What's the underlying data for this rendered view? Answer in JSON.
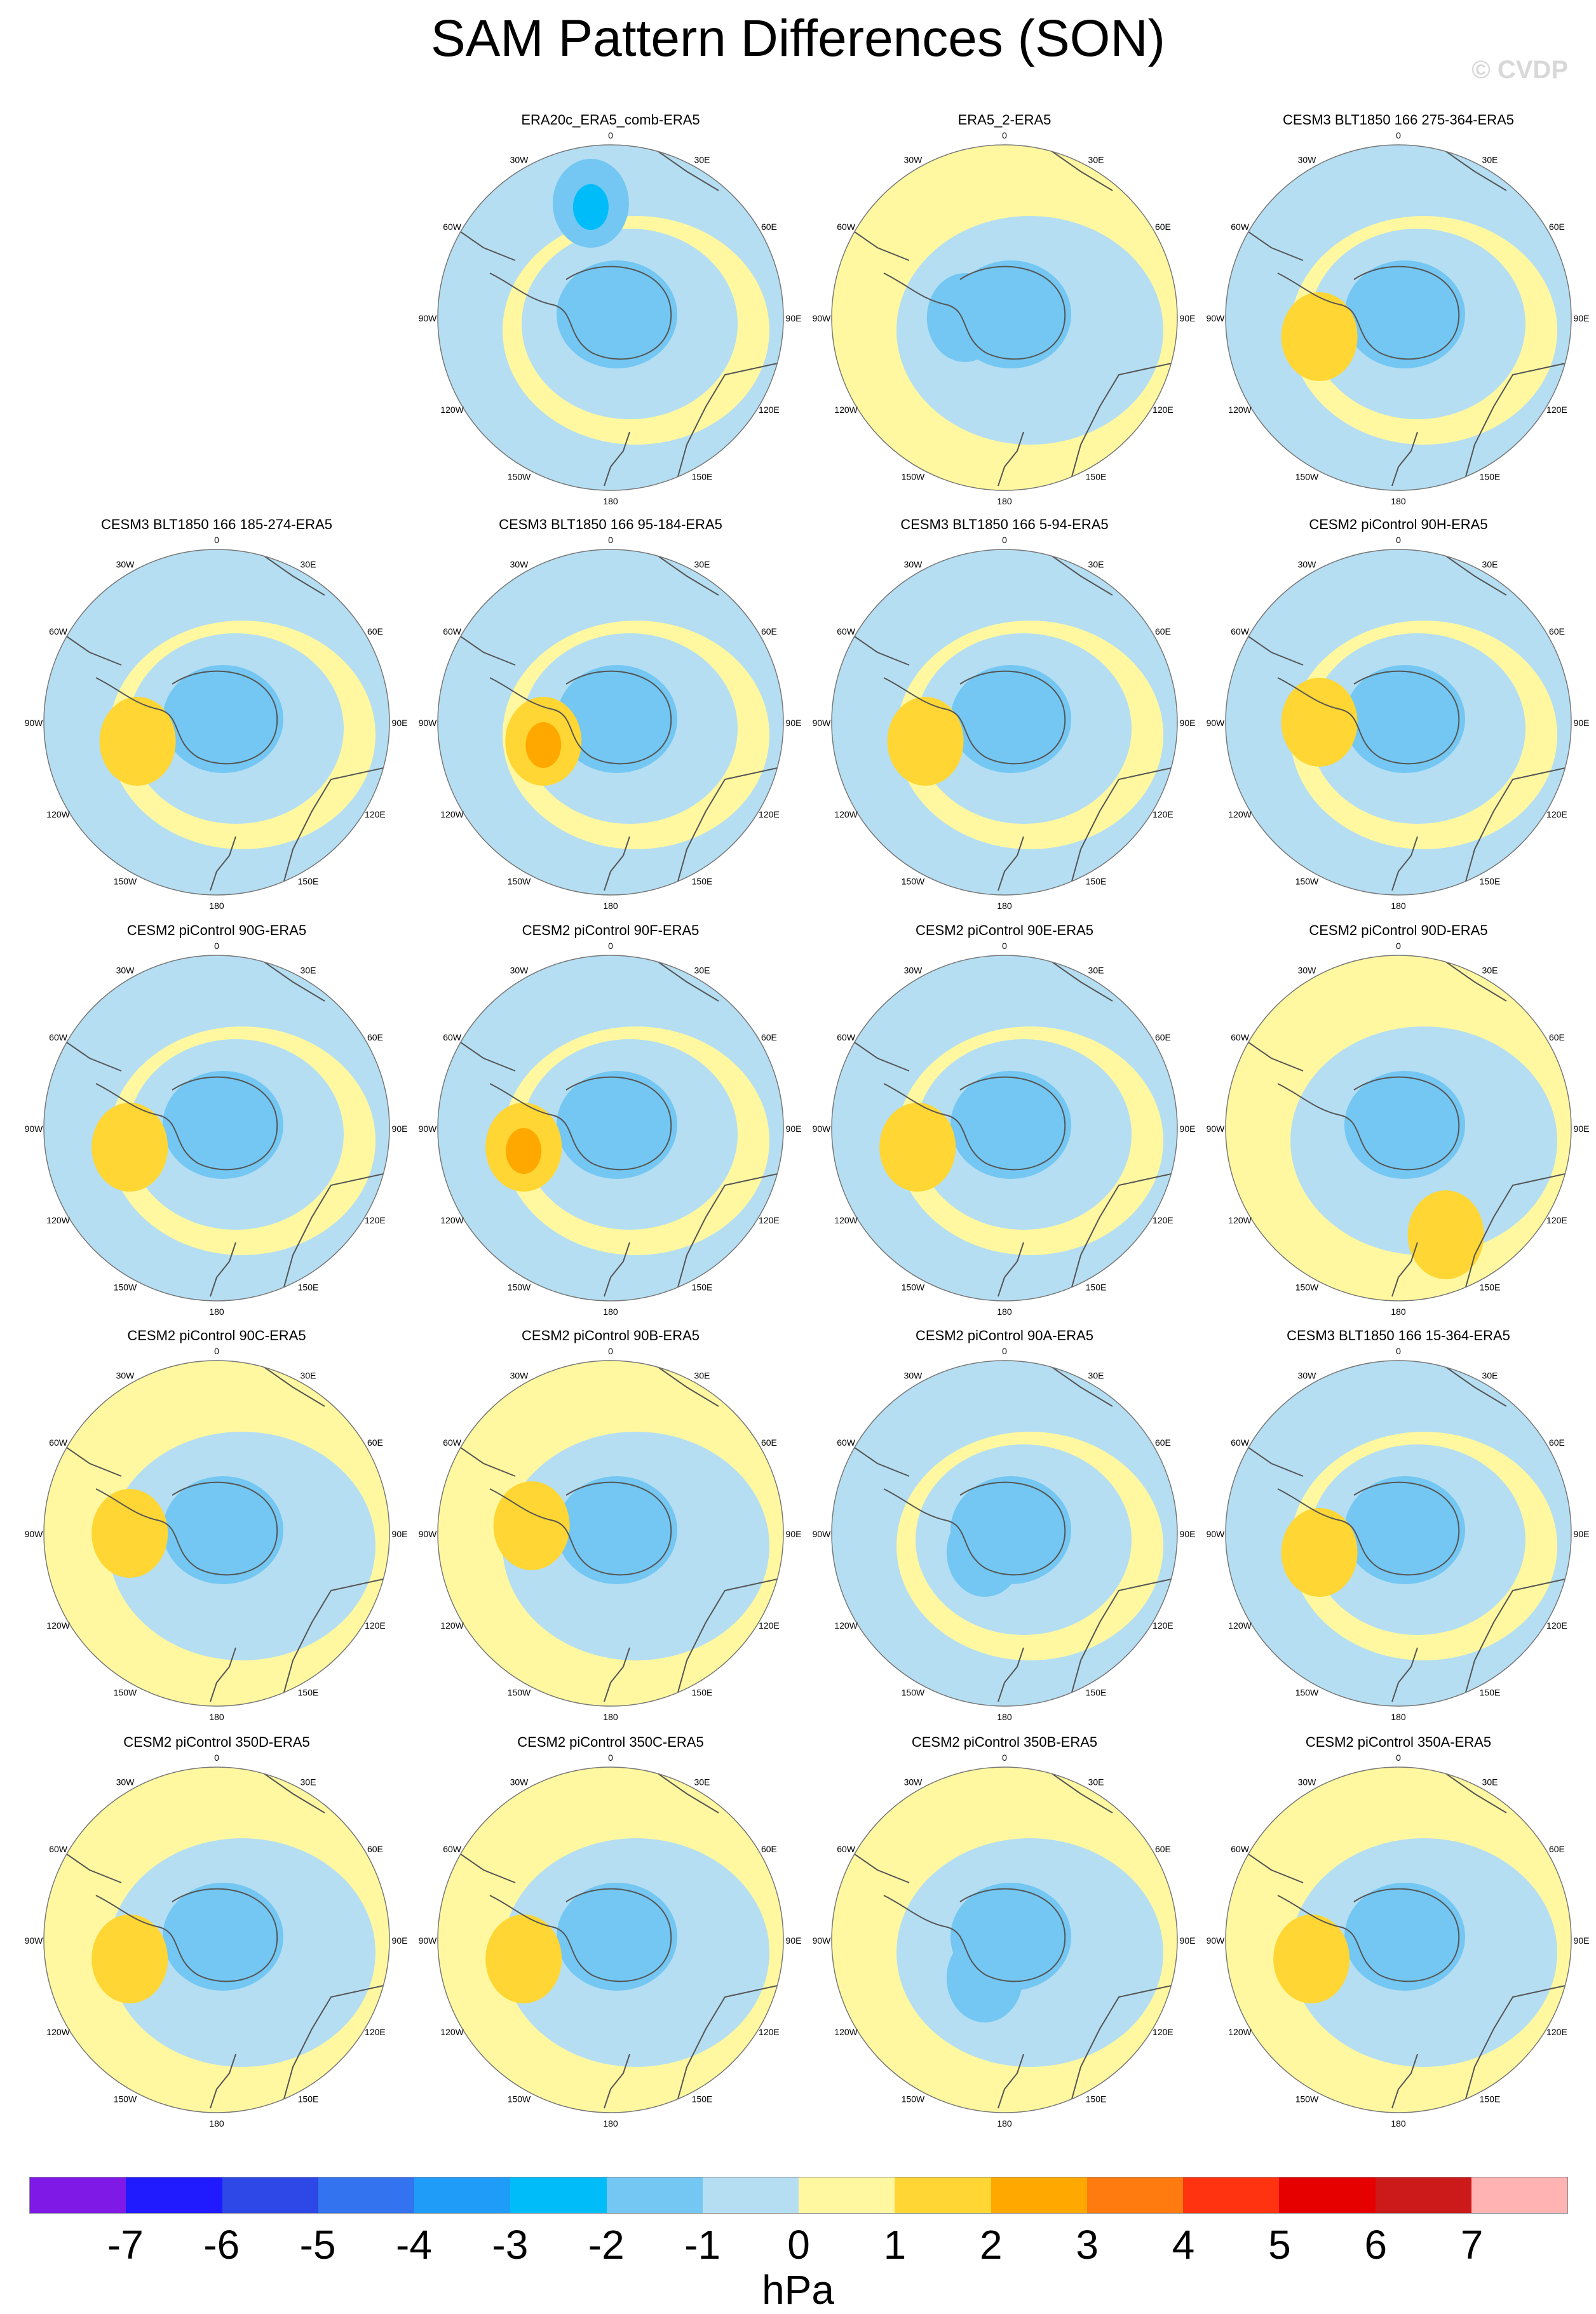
{
  "title": "SAM Pattern Differences (SON)",
  "watermark": "© CVDP",
  "units": "hPa",
  "lon_labels": [
    "0",
    "30E",
    "60E",
    "90E",
    "120E",
    "150E",
    "180",
    "150W",
    "120W",
    "90W",
    "60W",
    "30W"
  ],
  "colors": {
    "background_ring": "#fff8a0",
    "coast": "#555555",
    "boundary": "#777777"
  },
  "chart_data": {
    "type": "heatmap",
    "projection": "south-polar-stereographic",
    "variable": "SLP difference",
    "levels": [
      "-7",
      "-6",
      "-5",
      "-4",
      "-3",
      "-2",
      "-1",
      "0",
      "1",
      "2",
      "3",
      "4",
      "5",
      "6",
      "7"
    ],
    "colors": [
      "#7f1ae6",
      "#1f1aff",
      "#2d48e6",
      "#3373f0",
      "#1f9cf7",
      "#00bdfa",
      "#73c7f2",
      "#b5def2",
      "#fff8a0",
      "#ffd633",
      "#ffa800",
      "#ff7a0f",
      "#ff330f",
      "#e60000",
      "#cc1a1a",
      "#ffb3b3"
    ],
    "panels": [
      {
        "title": "ERA20c_ERA5_comb-ERA5"
      },
      {
        "title": "ERA5_2-ERA5"
      },
      {
        "title": "CESM3 BLT1850 166 275-364-ERA5"
      },
      {
        "title": "CESM3 BLT1850 166 185-274-ERA5"
      },
      {
        "title": "CESM3 BLT1850 166 95-184-ERA5"
      },
      {
        "title": "CESM3 BLT1850 166 5-94-ERA5"
      },
      {
        "title": "CESM2 piControl 90H-ERA5"
      },
      {
        "title": "CESM2 piControl 90G-ERA5"
      },
      {
        "title": "CESM2 piControl 90F-ERA5"
      },
      {
        "title": "CESM2 piControl 90E-ERA5"
      },
      {
        "title": "CESM2 piControl 90D-ERA5"
      },
      {
        "title": "CESM2 piControl 90C-ERA5"
      },
      {
        "title": "CESM2 piControl 90B-ERA5"
      },
      {
        "title": "CESM2 piControl 90A-ERA5"
      },
      {
        "title": "CESM3 BLT1850 166 15-364-ERA5"
      },
      {
        "title": "CESM2 piControl 350D-ERA5"
      },
      {
        "title": "CESM2 piControl 350C-ERA5"
      },
      {
        "title": "CESM2 piControl 350B-ERA5"
      },
      {
        "title": "CESM2 piControl 350A-ERA5"
      }
    ]
  }
}
